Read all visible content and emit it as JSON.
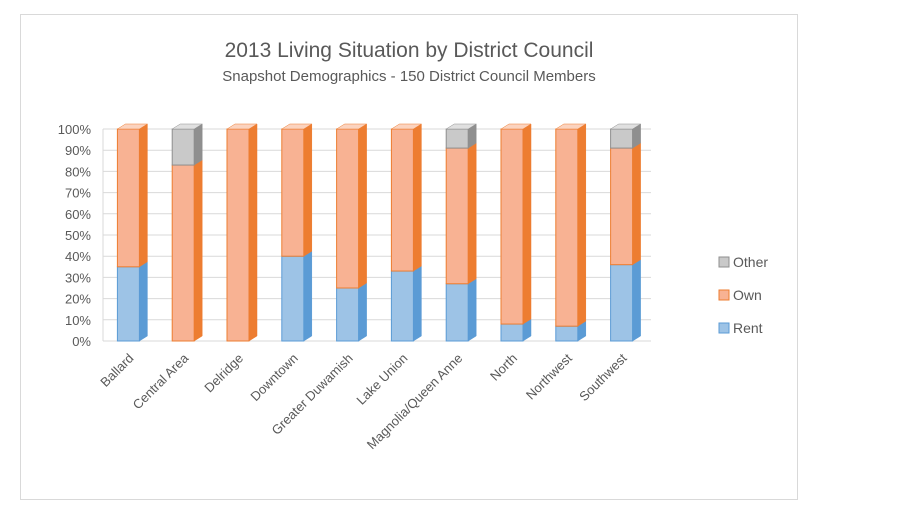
{
  "chart_data": {
    "type": "bar",
    "stacked": "percent",
    "title": "2013 Living Situation by District Council",
    "subtitle": "Snapshot Demographics  - 150 District Council Members",
    "xlabel": "",
    "ylabel": "",
    "ylim": [
      0,
      100
    ],
    "y_ticks": [
      "0%",
      "10%",
      "20%",
      "30%",
      "40%",
      "50%",
      "60%",
      "70%",
      "80%",
      "90%",
      "100%"
    ],
    "grid": true,
    "legend_position": "right",
    "categories": [
      "Ballard",
      "Central Area",
      "Delridge",
      "Downtown",
      "Greater Duwamish",
      "Lake Union",
      "Magnolia/Queen Anne",
      "North",
      "Northwest",
      "Southwest"
    ],
    "series": [
      {
        "name": "Rent",
        "values": [
          35,
          0,
          0,
          40,
          25,
          33,
          27,
          8,
          7,
          36
        ]
      },
      {
        "name": "Own",
        "values": [
          65,
          83,
          100,
          60,
          75,
          67,
          64,
          92,
          93,
          55
        ]
      },
      {
        "name": "Other",
        "values": [
          0,
          17,
          0,
          0,
          0,
          0,
          9,
          0,
          0,
          9
        ]
      }
    ],
    "legend": [
      "Other",
      "Own",
      "Rent"
    ]
  },
  "colors": {
    "Rent": {
      "front": "#9dc3e6",
      "side": "#5b9bd5",
      "top": "#c9ddf1",
      "stroke": "#5b9bd5"
    },
    "Own": {
      "front": "#f8b293",
      "side": "#ed7d31",
      "top": "#fbd3bf",
      "stroke": "#ed7d31"
    },
    "Other": {
      "front": "#c9c9c9",
      "side": "#8f8f8f",
      "top": "#e0e0e0",
      "stroke": "#8f8f8f"
    }
  }
}
